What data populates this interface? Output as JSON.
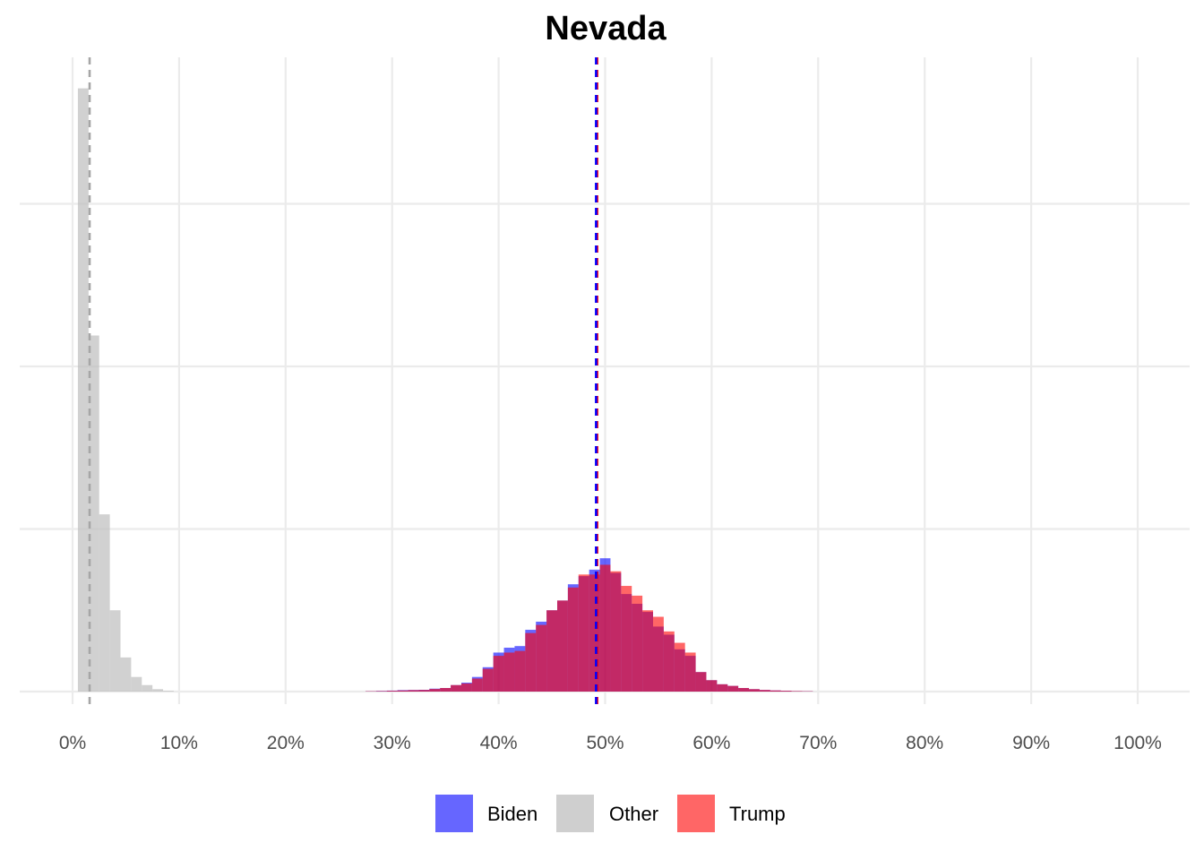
{
  "chart_data": {
    "type": "histogram",
    "title": "Nevada",
    "xlabel": "",
    "ylabel": "",
    "xlim": [
      -0.05,
      1.05
    ],
    "ylim": [
      0,
      3.73
    ],
    "x_ticks": [
      0,
      0.1,
      0.2,
      0.3,
      0.4,
      0.5,
      0.6,
      0.7,
      0.8,
      0.9,
      1.0
    ],
    "x_tick_labels": [
      "0%",
      "10%",
      "20%",
      "30%",
      "40%",
      "50%",
      "60%",
      "70%",
      "80%",
      "90%",
      "100%"
    ],
    "y_ticks_minor": [
      0.5,
      1.5,
      2.5
    ],
    "y_ticks_major": [
      0,
      1,
      2,
      3
    ],
    "y_tick_labels": [],
    "grid": true,
    "legend_position": "bottom",
    "legend": [
      {
        "label": "Biden",
        "color": "#6666ff"
      },
      {
        "label": "Other",
        "color": "#cfcfcf"
      },
      {
        "label": "Trump",
        "color": "#ff6666"
      }
    ],
    "bin_width": 0.01,
    "series": [
      {
        "name": "Other",
        "color": "#bdbdbd",
        "opacity": 0.7,
        "bins": [
          {
            "x0": 0.005,
            "y": 3.71
          },
          {
            "x0": 0.015,
            "y": 2.19
          },
          {
            "x0": 0.025,
            "y": 1.09
          },
          {
            "x0": 0.035,
            "y": 0.5
          },
          {
            "x0": 0.045,
            "y": 0.21
          },
          {
            "x0": 0.055,
            "y": 0.09
          },
          {
            "x0": 0.065,
            "y": 0.04
          },
          {
            "x0": 0.075,
            "y": 0.015
          },
          {
            "x0": 0.085,
            "y": 0.005
          }
        ]
      },
      {
        "name": "Biden",
        "color": "#0000ff",
        "opacity": 0.6,
        "bins": [
          {
            "x0": 0.275,
            "y": 0.002
          },
          {
            "x0": 0.285,
            "y": 0.004
          },
          {
            "x0": 0.295,
            "y": 0.006
          },
          {
            "x0": 0.305,
            "y": 0.009
          },
          {
            "x0": 0.315,
            "y": 0.01
          },
          {
            "x0": 0.325,
            "y": 0.011
          },
          {
            "x0": 0.335,
            "y": 0.018
          },
          {
            "x0": 0.345,
            "y": 0.022
          },
          {
            "x0": 0.355,
            "y": 0.04
          },
          {
            "x0": 0.365,
            "y": 0.055
          },
          {
            "x0": 0.375,
            "y": 0.09
          },
          {
            "x0": 0.385,
            "y": 0.15
          },
          {
            "x0": 0.395,
            "y": 0.24
          },
          {
            "x0": 0.405,
            "y": 0.27
          },
          {
            "x0": 0.415,
            "y": 0.28
          },
          {
            "x0": 0.425,
            "y": 0.38
          },
          {
            "x0": 0.435,
            "y": 0.43
          },
          {
            "x0": 0.445,
            "y": 0.5
          },
          {
            "x0": 0.455,
            "y": 0.56
          },
          {
            "x0": 0.465,
            "y": 0.66
          },
          {
            "x0": 0.475,
            "y": 0.71
          },
          {
            "x0": 0.485,
            "y": 0.75
          },
          {
            "x0": 0.495,
            "y": 0.82
          },
          {
            "x0": 0.505,
            "y": 0.73
          },
          {
            "x0": 0.515,
            "y": 0.6
          },
          {
            "x0": 0.525,
            "y": 0.54
          },
          {
            "x0": 0.535,
            "y": 0.49
          },
          {
            "x0": 0.545,
            "y": 0.4
          },
          {
            "x0": 0.555,
            "y": 0.35
          },
          {
            "x0": 0.565,
            "y": 0.26
          },
          {
            "x0": 0.575,
            "y": 0.22
          },
          {
            "x0": 0.585,
            "y": 0.12
          },
          {
            "x0": 0.595,
            "y": 0.07
          },
          {
            "x0": 0.605,
            "y": 0.045
          },
          {
            "x0": 0.615,
            "y": 0.035
          },
          {
            "x0": 0.625,
            "y": 0.022
          },
          {
            "x0": 0.635,
            "y": 0.015
          },
          {
            "x0": 0.645,
            "y": 0.01
          },
          {
            "x0": 0.655,
            "y": 0.007
          },
          {
            "x0": 0.665,
            "y": 0.005
          },
          {
            "x0": 0.675,
            "y": 0.003
          },
          {
            "x0": 0.685,
            "y": 0.002
          }
        ]
      },
      {
        "name": "Trump",
        "color": "#ff0000",
        "opacity": 0.6,
        "bins": [
          {
            "x0": 0.275,
            "y": 0.002
          },
          {
            "x0": 0.285,
            "y": 0.003
          },
          {
            "x0": 0.295,
            "y": 0.005
          },
          {
            "x0": 0.305,
            "y": 0.007
          },
          {
            "x0": 0.315,
            "y": 0.009
          },
          {
            "x0": 0.325,
            "y": 0.01
          },
          {
            "x0": 0.335,
            "y": 0.016
          },
          {
            "x0": 0.345,
            "y": 0.022
          },
          {
            "x0": 0.355,
            "y": 0.04
          },
          {
            "x0": 0.365,
            "y": 0.05
          },
          {
            "x0": 0.375,
            "y": 0.08
          },
          {
            "x0": 0.385,
            "y": 0.14
          },
          {
            "x0": 0.395,
            "y": 0.22
          },
          {
            "x0": 0.405,
            "y": 0.24
          },
          {
            "x0": 0.415,
            "y": 0.25
          },
          {
            "x0": 0.425,
            "y": 0.36
          },
          {
            "x0": 0.435,
            "y": 0.41
          },
          {
            "x0": 0.445,
            "y": 0.5
          },
          {
            "x0": 0.455,
            "y": 0.56
          },
          {
            "x0": 0.465,
            "y": 0.64
          },
          {
            "x0": 0.475,
            "y": 0.72
          },
          {
            "x0": 0.485,
            "y": 0.72
          },
          {
            "x0": 0.495,
            "y": 0.78
          },
          {
            "x0": 0.505,
            "y": 0.74
          },
          {
            "x0": 0.515,
            "y": 0.65
          },
          {
            "x0": 0.525,
            "y": 0.59
          },
          {
            "x0": 0.535,
            "y": 0.5
          },
          {
            "x0": 0.545,
            "y": 0.46
          },
          {
            "x0": 0.555,
            "y": 0.37
          },
          {
            "x0": 0.565,
            "y": 0.3
          },
          {
            "x0": 0.575,
            "y": 0.24
          },
          {
            "x0": 0.585,
            "y": 0.12
          },
          {
            "x0": 0.595,
            "y": 0.07
          },
          {
            "x0": 0.605,
            "y": 0.045
          },
          {
            "x0": 0.615,
            "y": 0.035
          },
          {
            "x0": 0.625,
            "y": 0.022
          },
          {
            "x0": 0.635,
            "y": 0.015
          },
          {
            "x0": 0.645,
            "y": 0.01
          },
          {
            "x0": 0.655,
            "y": 0.007
          },
          {
            "x0": 0.665,
            "y": 0.005
          },
          {
            "x0": 0.675,
            "y": 0.003
          },
          {
            "x0": 0.685,
            "y": 0.002
          }
        ]
      }
    ],
    "reference_lines": [
      {
        "name": "Other mean",
        "x": 0.016,
        "color": "#a6a6a6",
        "style": "dashed"
      },
      {
        "name": "Trump mean",
        "x": 0.4925,
        "color": "#ff0000",
        "style": "dashed"
      },
      {
        "name": "Biden mean",
        "x": 0.4915,
        "color": "#0000ff",
        "style": "dashed"
      }
    ]
  }
}
